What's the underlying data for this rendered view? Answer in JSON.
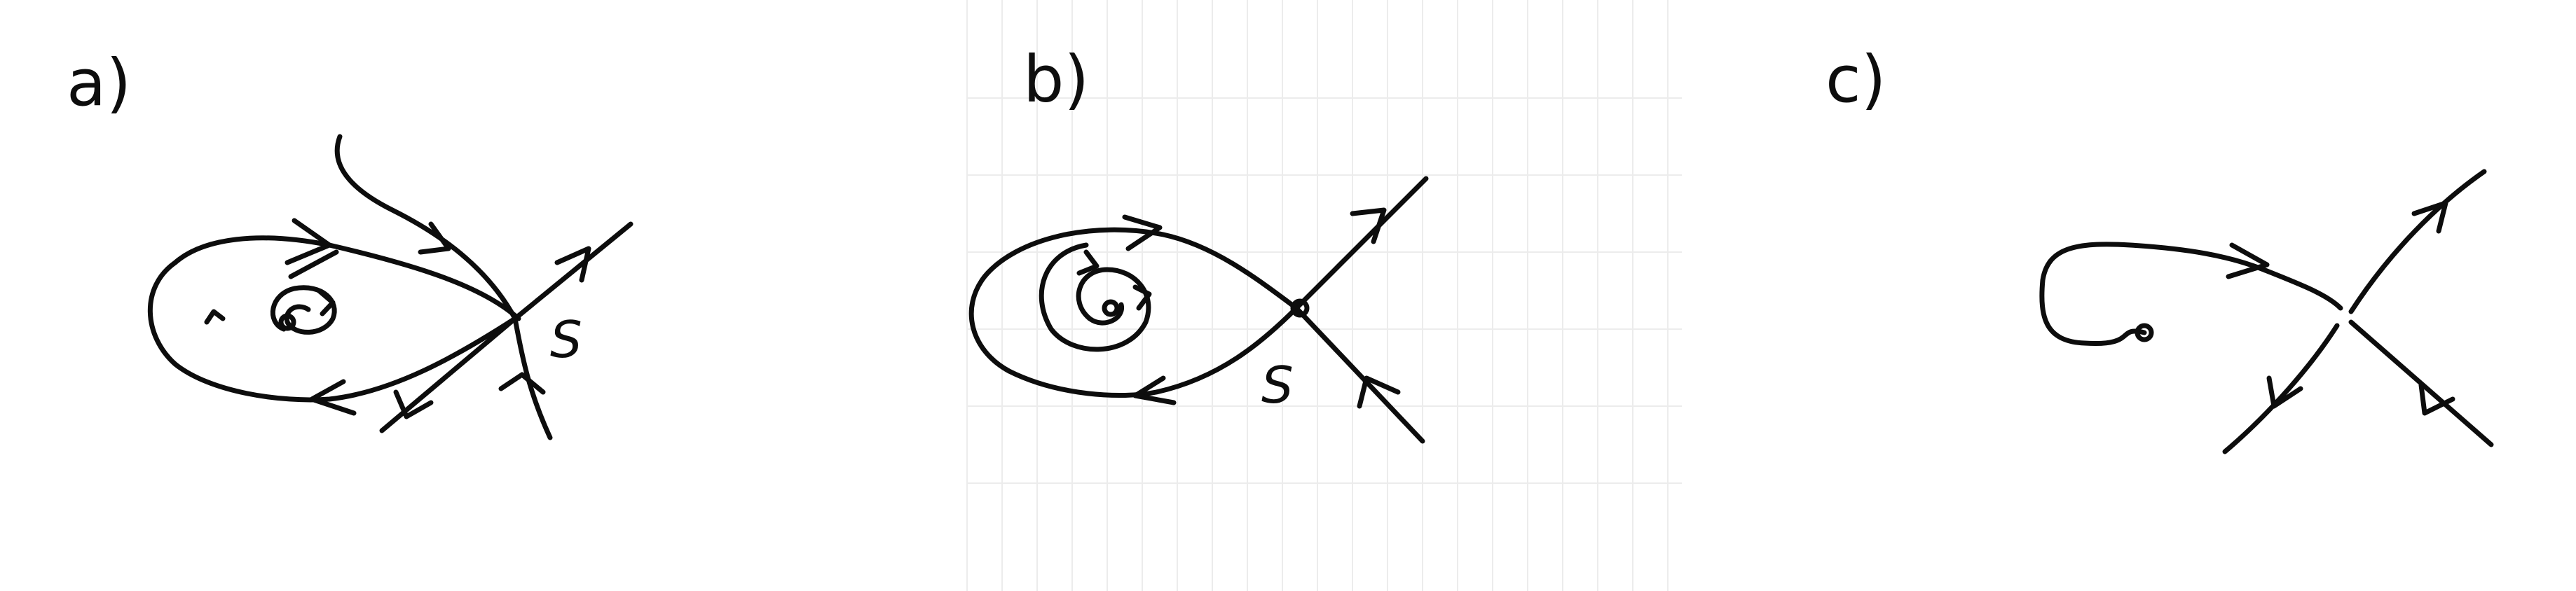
{
  "colors": {
    "ink": "#0d0d0d",
    "paper": "#ffffff",
    "grid": "#e6e6e6"
  },
  "panels": [
    {
      "id": "a",
      "label": "a)",
      "saddle_label": "S"
    },
    {
      "id": "b",
      "label": "b)",
      "saddle_label": "S"
    },
    {
      "id": "c",
      "label": "c)"
    }
  ]
}
